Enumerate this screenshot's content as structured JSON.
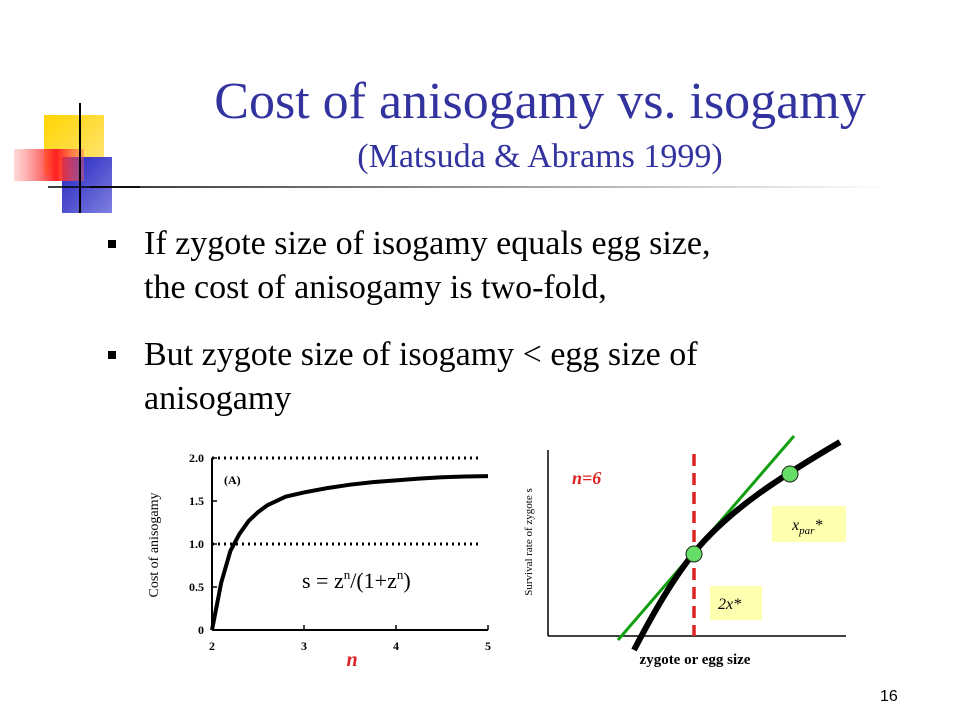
{
  "slide": {
    "title": "Cost of anisogamy vs. isogamy",
    "subtitle": "(Matsuda & Abrams 1999)",
    "bullets": [
      {
        "lines": [
          "If zygote size of isogamy equals egg size,",
          "the cost of anisogamy is two-fold,"
        ]
      },
      {
        "lines": [
          "But zygote size of isogamy < egg size of",
          "anisogamy"
        ]
      }
    ],
    "page_number": "16",
    "colors": {
      "title": "#3333a0",
      "accent_red": "#dd2222",
      "accent_green": "#11a011",
      "label_box": "#ffffb0",
      "marker": "#66dd66"
    }
  },
  "chart_data": [
    {
      "type": "line",
      "panel_label": "(A)",
      "ylabel": "Cost of anisogamy",
      "xlabel": "n",
      "formula": {
        "lhs": "s = z",
        "sup1": "n",
        "mid": "/(1+z",
        "sup2": "n",
        "end": ")"
      },
      "xlim": [
        2,
        5
      ],
      "ylim": [
        0,
        2
      ],
      "x_ticks": [
        "2",
        "3",
        "4",
        "5"
      ],
      "y_ticks": [
        "0",
        "0.5",
        "1.0",
        "1.5",
        "2.0"
      ],
      "reference_lines": [
        2.0,
        1.0
      ],
      "series": [
        {
          "x": [
            2.0,
            2.1,
            2.2,
            2.3,
            2.4,
            2.5,
            2.6,
            2.8,
            3.0,
            3.25,
            3.5,
            3.75,
            4.0,
            4.25,
            4.5,
            4.75,
            5.0
          ],
          "y": [
            0.0,
            0.55,
            0.92,
            1.12,
            1.27,
            1.37,
            1.45,
            1.55,
            1.6,
            1.65,
            1.69,
            1.72,
            1.74,
            1.76,
            1.775,
            1.785,
            1.79
          ]
        }
      ]
    },
    {
      "type": "line",
      "ylabel": "Survival rate of zygote s",
      "xlabel": "zygote or egg size",
      "annotation": "n=6",
      "point_labels": {
        "iso": "2x*",
        "par_base": "x",
        "par_sub": "par",
        "par_star": "*"
      }
    }
  ]
}
